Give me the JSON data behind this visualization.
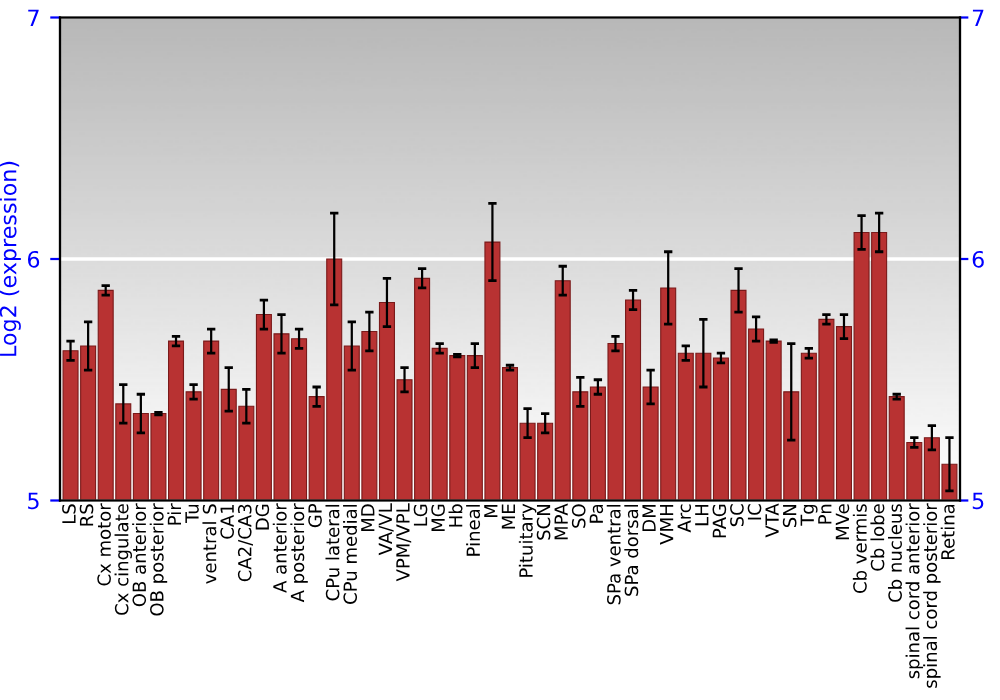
{
  "chart_data": {
    "type": "bar",
    "ylabel": "Log2 (expression)",
    "categories": [
      "LS",
      "RS",
      "Cx motor",
      "Cx cingulate",
      "OB anterior",
      "OB posterior",
      "Pir",
      "Tu",
      "ventral S",
      "CA1",
      "CA2/CA3",
      "DG",
      "A anterior",
      "A posterior",
      "GP",
      "CPu lateral",
      "CPu medial",
      "MD",
      "VA/VL",
      "VPM/VPL",
      "LG",
      "MG",
      "Hb",
      "Pineal",
      "M",
      "ME",
      "Pituitary",
      "SCN",
      "MPA",
      "SO",
      "Pa",
      "SPa ventral",
      "SPa dorsal",
      "DM",
      "VMH",
      "Arc",
      "LH",
      "PAG",
      "SC",
      "IC",
      "VTA",
      "SN",
      "Tg",
      "Pn",
      "MVe",
      "Cb vermis",
      "Cb lobe",
      "Cb nucleus",
      "spinal cord anterior",
      "spinal cord posterior",
      "Retina"
    ],
    "values": [
      5.62,
      5.64,
      5.87,
      5.4,
      5.36,
      5.36,
      5.66,
      5.45,
      5.66,
      5.46,
      5.39,
      5.77,
      5.69,
      5.67,
      5.43,
      6.0,
      5.64,
      5.7,
      5.82,
      5.5,
      5.92,
      5.63,
      5.6,
      5.6,
      6.07,
      5.55,
      5.32,
      5.32,
      5.91,
      5.45,
      5.47,
      5.65,
      5.83,
      5.47,
      5.88,
      5.61,
      5.61,
      5.59,
      5.87,
      5.71,
      5.66,
      5.45,
      5.61,
      5.75,
      5.72,
      6.11,
      6.11,
      5.43,
      5.24,
      5.26,
      5.15
    ],
    "errors": [
      0.04,
      0.1,
      0.02,
      0.08,
      0.08,
      0.005,
      0.02,
      0.03,
      0.05,
      0.09,
      0.07,
      0.06,
      0.08,
      0.04,
      0.04,
      0.19,
      0.1,
      0.08,
      0.1,
      0.05,
      0.04,
      0.02,
      0.005,
      0.05,
      0.16,
      0.01,
      0.06,
      0.04,
      0.06,
      0.06,
      0.03,
      0.03,
      0.04,
      0.07,
      0.15,
      0.03,
      0.14,
      0.02,
      0.09,
      0.05,
      0.005,
      0.2,
      0.02,
      0.02,
      0.05,
      0.07,
      0.08,
      0.01,
      0.02,
      0.05,
      0.11
    ],
    "color": "#b83232",
    "ylim": [
      5,
      7
    ],
    "yticks": [
      5,
      6,
      7
    ],
    "y2lim": [
      5,
      7
    ],
    "y2ticks": [
      5,
      6,
      7
    ],
    "ref_lines": [
      {
        "axis": "y",
        "value": 6,
        "color": "#ffffff"
      }
    ]
  }
}
